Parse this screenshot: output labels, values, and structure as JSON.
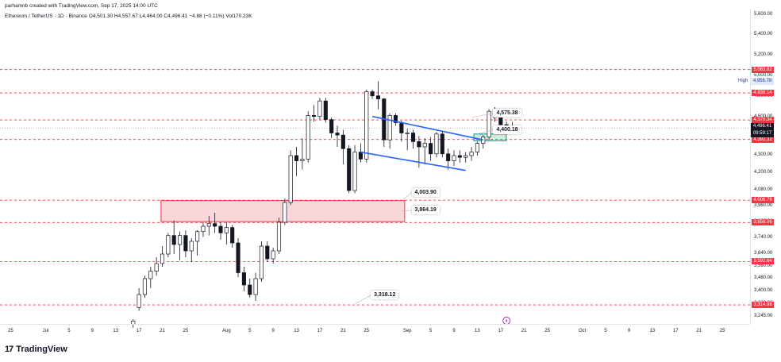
{
  "header": {
    "created_by": "parhamnb created with TradingView.com, Sep 17, 2025 14:00 UTC",
    "symbol_line": "Ethereum / TetherUS · 1D · Binance  O4,501.30  H4,557.67  L4,464.00  C4,496.41  −4.88 (−0.11%)  Vol170.23K"
  },
  "brand": {
    "logo_text": "TradingView",
    "mark": "17"
  },
  "chart_data": {
    "type": "candlestick",
    "title": "Ethereum / TetherUS · 1D · Binance",
    "xlabel": "",
    "ylabel": "",
    "ylim": [
      3180,
      5640
    ],
    "price_ticks": [
      "5,600.00",
      "5,400.00",
      "5,200.00",
      "5,000.00",
      "4,800.00",
      "4,600.00",
      "4,400.00",
      "4,300.00",
      "4,200.00",
      "4,080.00",
      "3,960.00",
      "3,860.00",
      "3,740.00",
      "3,640.00",
      "3,560.00",
      "3,480.00",
      "3,400.00",
      "3,320.00",
      "3,245.00"
    ],
    "price_tick_values": [
      5600,
      5400,
      5200,
      5000,
      4800,
      4600,
      4400,
      4300,
      4200,
      4080,
      3960,
      3860,
      3740,
      3640,
      3560,
      3480,
      3400,
      3320,
      3245
    ],
    "date_labels": [
      {
        "label": "25",
        "idx": -26
      },
      {
        "label": "Jul",
        "idx": -20
      },
      {
        "label": "5",
        "idx": -16
      },
      {
        "label": "9",
        "idx": -12
      },
      {
        "label": "13",
        "idx": -8
      },
      {
        "label": "17",
        "idx": -4
      },
      {
        "label": "21",
        "idx": 0
      },
      {
        "label": "25",
        "idx": 4
      },
      {
        "label": "Aug",
        "idx": 11
      },
      {
        "label": "5",
        "idx": 15
      },
      {
        "label": "9",
        "idx": 19
      },
      {
        "label": "13",
        "idx": 23
      },
      {
        "label": "17",
        "idx": 27
      },
      {
        "label": "21",
        "idx": 31
      },
      {
        "label": "25",
        "idx": 35
      },
      {
        "label": "Sep",
        "idx": 42
      },
      {
        "label": "5",
        "idx": 46
      },
      {
        "label": "9",
        "idx": 50
      },
      {
        "label": "13",
        "idx": 54
      },
      {
        "label": "17",
        "idx": 58
      },
      {
        "label": "21",
        "idx": 62
      },
      {
        "label": "25",
        "idx": 66
      },
      {
        "label": "Oct",
        "idx": 72
      },
      {
        "label": "5",
        "idx": 76
      },
      {
        "label": "9",
        "idx": 80
      },
      {
        "label": "13",
        "idx": 84
      },
      {
        "label": "17",
        "idx": 88
      },
      {
        "label": "21",
        "idx": 92
      },
      {
        "label": "25",
        "idx": 96
      }
    ],
    "candles": [
      {
        "o": 3200,
        "h": 3230,
        "l": 3180,
        "c": 3220
      },
      {
        "o": 3300,
        "h": 3420,
        "l": 3280,
        "c": 3380
      },
      {
        "o": 3380,
        "h": 3500,
        "l": 3360,
        "c": 3480
      },
      {
        "o": 3480,
        "h": 3560,
        "l": 3420,
        "c": 3530
      },
      {
        "o": 3530,
        "h": 3620,
        "l": 3500,
        "c": 3580
      },
      {
        "o": 3580,
        "h": 3690,
        "l": 3560,
        "c": 3640
      },
      {
        "o": 3640,
        "h": 3780,
        "l": 3620,
        "c": 3760
      },
      {
        "o": 3760,
        "h": 3870,
        "l": 3640,
        "c": 3700
      },
      {
        "o": 3700,
        "h": 3790,
        "l": 3600,
        "c": 3760
      },
      {
        "o": 3760,
        "h": 3800,
        "l": 3620,
        "c": 3660
      },
      {
        "o": 3660,
        "h": 3740,
        "l": 3590,
        "c": 3720
      },
      {
        "o": 3720,
        "h": 3800,
        "l": 3630,
        "c": 3790
      },
      {
        "o": 3790,
        "h": 3860,
        "l": 3750,
        "c": 3830
      },
      {
        "o": 3830,
        "h": 3900,
        "l": 3760,
        "c": 3850
      },
      {
        "o": 3850,
        "h": 3920,
        "l": 3780,
        "c": 3830
      },
      {
        "o": 3830,
        "h": 3860,
        "l": 3730,
        "c": 3780
      },
      {
        "o": 3780,
        "h": 3860,
        "l": 3700,
        "c": 3820
      },
      {
        "o": 3820,
        "h": 3840,
        "l": 3680,
        "c": 3710
      },
      {
        "o": 3710,
        "h": 3740,
        "l": 3490,
        "c": 3520
      },
      {
        "o": 3520,
        "h": 3560,
        "l": 3400,
        "c": 3440
      },
      {
        "o": 3440,
        "h": 3480,
        "l": 3360,
        "c": 3380
      },
      {
        "o": 3380,
        "h": 3520,
        "l": 3340,
        "c": 3480
      },
      {
        "o": 3480,
        "h": 3720,
        "l": 3460,
        "c": 3690
      },
      {
        "o": 3690,
        "h": 3720,
        "l": 3590,
        "c": 3610
      },
      {
        "o": 3610,
        "h": 3680,
        "l": 3580,
        "c": 3660
      },
      {
        "o": 3660,
        "h": 3890,
        "l": 3640,
        "c": 3860
      },
      {
        "o": 3860,
        "h": 4020,
        "l": 3840,
        "c": 3990
      },
      {
        "o": 3990,
        "h": 4330,
        "l": 3970,
        "c": 4300
      },
      {
        "o": 4300,
        "h": 4350,
        "l": 4180,
        "c": 4270
      },
      {
        "o": 4270,
        "h": 4400,
        "l": 4220,
        "c": 4280
      },
      {
        "o": 4280,
        "h": 4660,
        "l": 4260,
        "c": 4620
      },
      {
        "o": 4620,
        "h": 4720,
        "l": 4560,
        "c": 4610
      },
      {
        "o": 4610,
        "h": 4790,
        "l": 4580,
        "c": 4760
      },
      {
        "o": 4760,
        "h": 4790,
        "l": 4550,
        "c": 4580
      },
      {
        "o": 4580,
        "h": 4600,
        "l": 4400,
        "c": 4450
      },
      {
        "o": 4450,
        "h": 4520,
        "l": 4350,
        "c": 4430
      },
      {
        "o": 4430,
        "h": 4480,
        "l": 4250,
        "c": 4340
      },
      {
        "o": 4340,
        "h": 4360,
        "l": 4060,
        "c": 4080
      },
      {
        "o": 4080,
        "h": 4360,
        "l": 4060,
        "c": 4320
      },
      {
        "o": 4320,
        "h": 4370,
        "l": 4260,
        "c": 4280
      },
      {
        "o": 4280,
        "h": 4870,
        "l": 4260,
        "c": 4850
      },
      {
        "o": 4850,
        "h": 4870,
        "l": 4780,
        "c": 4810
      },
      {
        "o": 4810,
        "h": 4950,
        "l": 4680,
        "c": 4780
      },
      {
        "o": 4780,
        "h": 4790,
        "l": 4350,
        "c": 4390
      },
      {
        "o": 4390,
        "h": 4640,
        "l": 4340,
        "c": 4620
      },
      {
        "o": 4620,
        "h": 4640,
        "l": 4520,
        "c": 4550
      },
      {
        "o": 4550,
        "h": 4570,
        "l": 4380,
        "c": 4450
      },
      {
        "o": 4450,
        "h": 4490,
        "l": 4330,
        "c": 4450
      },
      {
        "o": 4450,
        "h": 4480,
        "l": 4340,
        "c": 4380
      },
      {
        "o": 4380,
        "h": 4420,
        "l": 4230,
        "c": 4350
      },
      {
        "o": 4350,
        "h": 4400,
        "l": 4250,
        "c": 4370
      },
      {
        "o": 4370,
        "h": 4410,
        "l": 4270,
        "c": 4310
      },
      {
        "o": 4310,
        "h": 4460,
        "l": 4290,
        "c": 4440
      },
      {
        "o": 4440,
        "h": 4470,
        "l": 4290,
        "c": 4310
      },
      {
        "o": 4310,
        "h": 4340,
        "l": 4220,
        "c": 4270
      },
      {
        "o": 4270,
        "h": 4330,
        "l": 4240,
        "c": 4300
      },
      {
        "o": 4300,
        "h": 4330,
        "l": 4260,
        "c": 4290
      },
      {
        "o": 4290,
        "h": 4320,
        "l": 4260,
        "c": 4300
      },
      {
        "o": 4300,
        "h": 4350,
        "l": 4270,
        "c": 4320
      },
      {
        "o": 4320,
        "h": 4380,
        "l": 4300,
        "c": 4370
      },
      {
        "o": 4370,
        "h": 4430,
        "l": 4340,
        "c": 4410
      },
      {
        "o": 4410,
        "h": 4680,
        "l": 4390,
        "c": 4660
      },
      {
        "o": 4660,
        "h": 4700,
        "l": 4560,
        "c": 4600
      },
      {
        "o": 4600,
        "h": 4620,
        "l": 4470,
        "c": 4530
      },
      {
        "o": 4530,
        "h": 4560,
        "l": 4460,
        "c": 4500
      },
      {
        "o": 4501.3,
        "h": 4557.67,
        "l": 4464,
        "c": 4496.41
      }
    ],
    "levels": [
      {
        "label": "5,063.82",
        "value": 5063.82,
        "color": "#f23645"
      },
      {
        "label": "4,838.14",
        "value": 4838.14,
        "color": "#f23645"
      },
      {
        "label": "4,576.34",
        "value": 4576.34,
        "color": "#f23645"
      },
      {
        "label": "4,392.32",
        "value": 4392.32,
        "color": "#f23645"
      },
      {
        "label": "4,006.76",
        "value": 4006.76,
        "color": "#f23645"
      },
      {
        "label": "3,858.06",
        "value": 3858.06,
        "color": "#f23645"
      },
      {
        "label": "3,592.64",
        "value": 3592.64,
        "color": "#f23645"
      },
      {
        "label": "3,314.98",
        "value": 3314.98,
        "color": "#f23645"
      }
    ],
    "high": {
      "label": "High",
      "value_text": "4,956.78",
      "value": 4956.78
    },
    "current": {
      "price": "4,496.41",
      "countdown": "09:59:17",
      "value": 4496.41
    },
    "annotations": [
      {
        "text": "4,575.38",
        "idx": 57,
        "price": 4640
      },
      {
        "text": "4,400.18",
        "idx": 57,
        "price": 4480
      },
      {
        "text": "4,003.90",
        "idx": 43,
        "price": 4065
      },
      {
        "text": "3,864.19",
        "idx": 43,
        "price": 3935
      },
      {
        "text": "3,318.12",
        "idx": 36,
        "price": 3375
      }
    ],
    "demand_zone": {
      "top": 4003.9,
      "bottom": 3864.19,
      "start_idx": 1,
      "end_idx": 41
    },
    "retest_zone": {
      "top": 4440,
      "bottom": 4385,
      "start_idx": 53,
      "end_idx": 58
    },
    "wedge": {
      "upper": [
        {
          "idx": 36,
          "price": 4610
        },
        {
          "idx": 55,
          "price": 4390
        }
      ],
      "lower": [
        {
          "idx": 34,
          "price": 4320
        },
        {
          "idx": 52,
          "price": 4215
        }
      ]
    },
    "colors": {
      "up": "#ffffff",
      "down": "#131722",
      "level": "#f23645",
      "zone_fill": "#f9d6d9",
      "retest_fill": "#cdeee0",
      "retest_border": "#089981",
      "wedge": "#2962ff"
    }
  }
}
